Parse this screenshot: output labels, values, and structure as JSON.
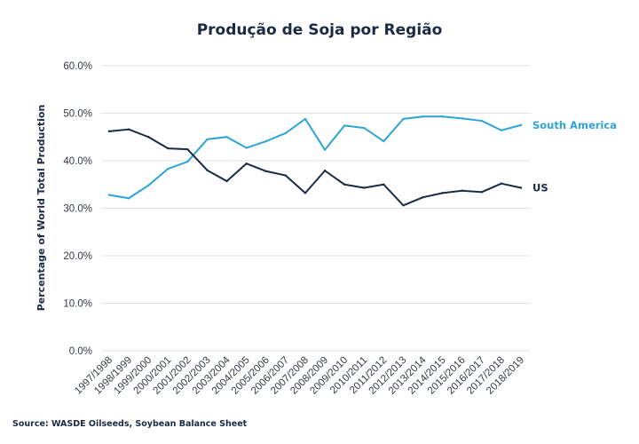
{
  "chart_data": {
    "type": "line",
    "title": "Produção de Soja por Região",
    "ylabel": "Percentage of World Total Production",
    "xlabel": "",
    "source": "Source: WASDE Oilseeds, Soybean Balance Sheet",
    "ylim": [
      0,
      60
    ],
    "yticks": [
      "0.0%",
      "10.0%",
      "20.0%",
      "30.0%",
      "40.0%",
      "50.0%",
      "60.0%"
    ],
    "ytick_values": [
      0,
      10,
      20,
      30,
      40,
      50,
      60
    ],
    "grid": true,
    "legend": "inline-right",
    "categories": [
      "1997/1998",
      "1998/1999",
      "1999/2000",
      "2000/2001",
      "2001/2002",
      "2002/2003",
      "2003/2004",
      "2004/2005",
      "2005/2006",
      "2006/2007",
      "2007/2008",
      "2008/2009",
      "2009/2010",
      "2010/2011",
      "2011/2012",
      "2012/2013",
      "2013/2014",
      "2014/2015",
      "2015/2016",
      "2016/2017",
      "2017/2018",
      "2018/2019"
    ],
    "series": [
      {
        "name": "South America",
        "color": "#2ea4d8",
        "values": [
          32.8,
          32.1,
          34.8,
          38.3,
          39.8,
          44.5,
          45.0,
          42.7,
          44.1,
          45.8,
          48.8,
          42.3,
          47.4,
          46.9,
          44.1,
          48.8,
          49.3,
          49.3,
          48.9,
          48.4,
          46.4,
          47.5
        ]
      },
      {
        "name": "US",
        "color": "#1b2a44",
        "values": [
          46.2,
          46.6,
          45.0,
          42.6,
          42.4,
          38.0,
          35.7,
          39.4,
          37.8,
          36.9,
          33.2,
          37.9,
          35.0,
          34.3,
          35.0,
          30.6,
          32.3,
          33.2,
          33.7,
          33.4,
          35.2,
          34.3
        ]
      }
    ]
  }
}
